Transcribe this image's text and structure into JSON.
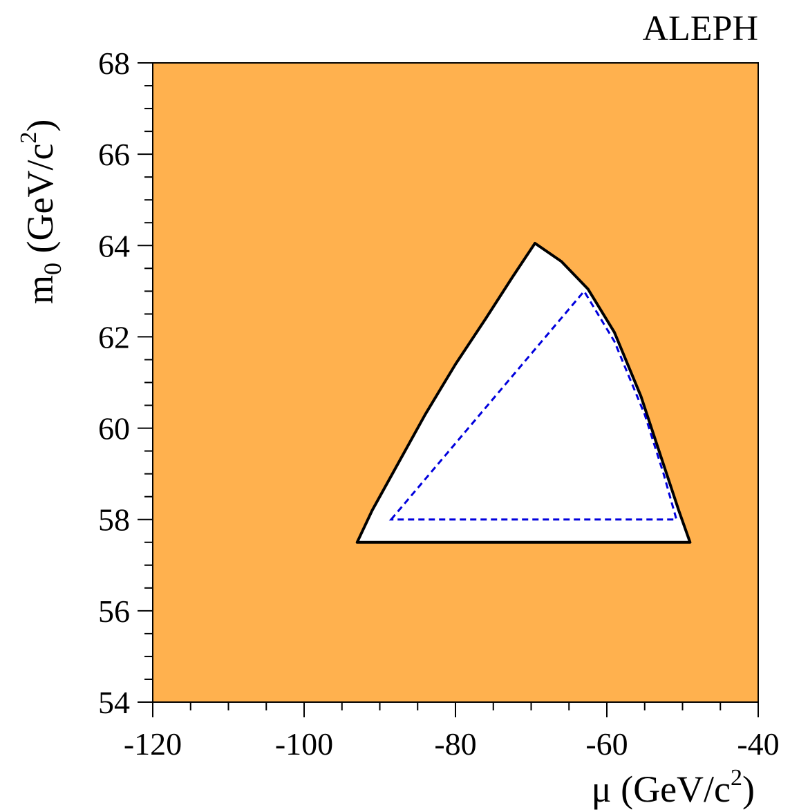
{
  "chart_data": {
    "type": "area",
    "experiment_label": "ALEPH",
    "xlabel": {
      "main": "μ (GeV/c",
      "sup": "2",
      "close": ")"
    },
    "ylabel": {
      "main": "m",
      "sub": "0",
      "rest": " (GeV/c",
      "sup": "2",
      "close": ")"
    },
    "xlim": [
      -120,
      -40
    ],
    "ylim": [
      54,
      68
    ],
    "x_major_ticks": [
      -120,
      -100,
      -80,
      -60,
      -40
    ],
    "x_tick_labels": [
      "-120",
      "-100",
      "-80",
      "-60",
      "-40"
    ],
    "x_minor_step": 5,
    "y_major_ticks": [
      54,
      56,
      58,
      60,
      62,
      64,
      66,
      68
    ],
    "y_tick_labels": [
      "54",
      "56",
      "58",
      "60",
      "62",
      "64",
      "66",
      "68"
    ],
    "y_minor_step": 0.5,
    "grid": false,
    "colors": {
      "excluded_fill": "#ffb14e",
      "allowed_fill": "#ffffff",
      "observed_line": "#000000",
      "expected_line": "#0000dd"
    },
    "series": [
      {
        "role": "observed",
        "style": "solid",
        "points": [
          [
            -93.0,
            57.5
          ],
          [
            -91.0,
            58.2
          ],
          [
            -88.0,
            59.1
          ],
          [
            -84.0,
            60.3
          ],
          [
            -80.0,
            61.4
          ],
          [
            -76.0,
            62.4
          ],
          [
            -72.5,
            63.3
          ],
          [
            -69.5,
            64.05
          ],
          [
            -66.0,
            63.65
          ],
          [
            -62.5,
            63.05
          ],
          [
            -59.0,
            62.1
          ],
          [
            -55.5,
            60.7
          ],
          [
            -52.5,
            59.2
          ],
          [
            -50.5,
            58.2
          ],
          [
            -49.0,
            57.5
          ],
          [
            -93.0,
            57.5
          ]
        ]
      },
      {
        "role": "expected",
        "style": "dashed",
        "points": [
          [
            -88.5,
            58.0
          ],
          [
            -63.0,
            63.0
          ],
          [
            -59.0,
            61.9
          ],
          [
            -55.0,
            60.3
          ],
          [
            -52.5,
            59.0
          ],
          [
            -50.8,
            58.0
          ],
          [
            -88.5,
            58.0
          ]
        ]
      }
    ]
  }
}
